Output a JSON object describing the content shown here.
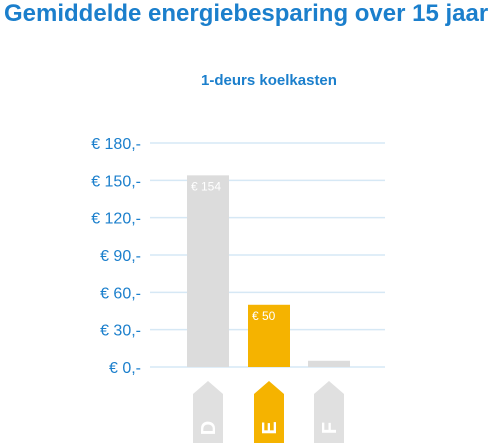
{
  "chart_data": {
    "type": "bar",
    "title": "Gemiddelde energiebesparing over 15 jaar",
    "subtitle": "1-deurs koelkasten",
    "categories": [
      "D",
      "E",
      "F"
    ],
    "values": [
      154,
      50,
      5
    ],
    "data_labels": [
      "€ 154",
      "€ 50",
      ""
    ],
    "yticks": [
      0,
      30,
      60,
      90,
      120,
      150,
      180
    ],
    "ytick_labels": [
      "€ 0,-",
      "€ 30,-",
      "€ 60,-",
      "€ 90,-",
      "€ 120,-",
      "€ 150,-",
      "€ 180,-"
    ],
    "ylim": [
      0,
      180
    ],
    "grid": true,
    "colors": {
      "text": "#1b7fcc",
      "grid": "#d6e8f5",
      "bar_default": "#dcdcdc",
      "bar_highlight": "#f5b300",
      "label_default": "#e0e0e0",
      "label_highlight": "#f5b300"
    },
    "highlight": "E"
  }
}
